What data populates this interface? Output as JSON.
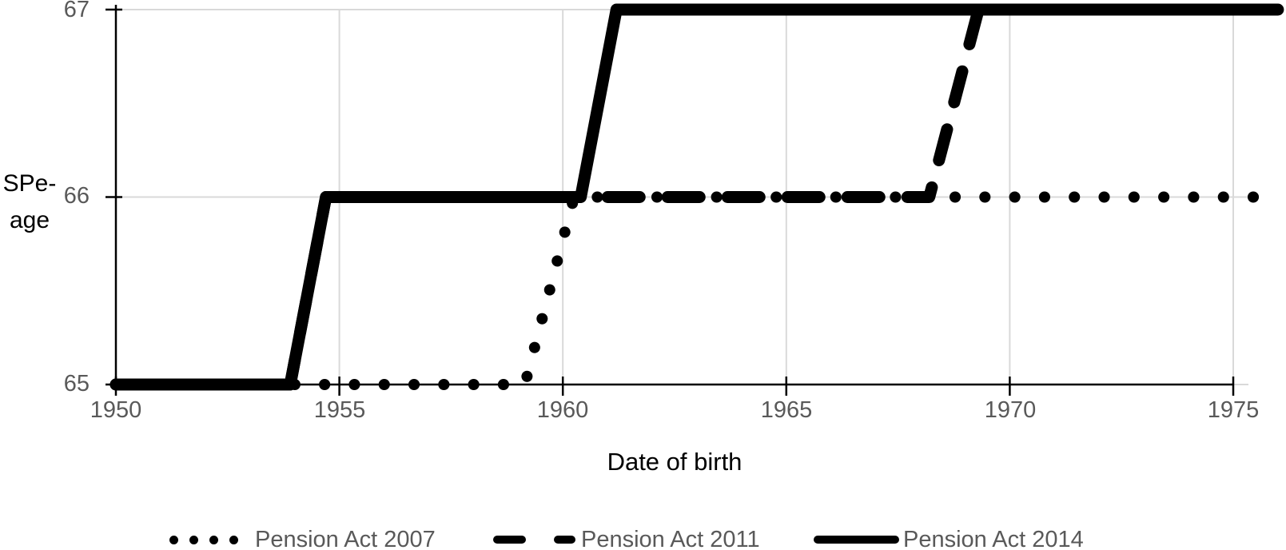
{
  "figure": {
    "y_axis": {
      "title_line1": "SPe-",
      "title_line2": "age",
      "ticks": [
        "67",
        "66",
        "65"
      ]
    },
    "x_axis": {
      "title": "Date of birth",
      "ticks": [
        "1950",
        "1955",
        "1960",
        "1965",
        "1970",
        "1975"
      ]
    },
    "legend": {
      "position": "bottom",
      "items": [
        {
          "label": "Pension Act 2007",
          "style": "dotted"
        },
        {
          "label": "Pension Act 2011",
          "style": "dashed"
        },
        {
          "label": "Pension Act 2014",
          "style": "solid"
        }
      ]
    }
  },
  "chart_data": {
    "type": "line",
    "title": "",
    "xlabel": "Date of birth",
    "ylabel": "SPe-age",
    "xlim": [
      1950,
      1976.1
    ],
    "ylim": [
      65,
      67
    ],
    "x_ticks": [
      1950,
      1955,
      1960,
      1965,
      1970,
      1975
    ],
    "y_ticks": [
      65,
      66,
      67
    ],
    "grid": true,
    "legend_position": "bottom",
    "series": [
      {
        "name": "Pension Act 2007",
        "style": "dotted",
        "points": [
          [
            1950,
            65
          ],
          [
            1959.15,
            65
          ],
          [
            1960.25,
            66
          ],
          [
            1975.7,
            66
          ]
        ]
      },
      {
        "name": "Pension Act 2011",
        "style": "dashed",
        "points": [
          [
            1950,
            65
          ],
          [
            1953.9,
            65
          ],
          [
            1954.7,
            66
          ],
          [
            1968.2,
            66
          ],
          [
            1969.3,
            67
          ],
          [
            1976,
            67
          ]
        ]
      },
      {
        "name": "Pension Act 2014",
        "style": "solid",
        "points": [
          [
            1950,
            65
          ],
          [
            1953.9,
            65
          ],
          [
            1954.7,
            66
          ],
          [
            1960.4,
            66
          ],
          [
            1961.2,
            67
          ],
          [
            1976,
            67
          ]
        ]
      }
    ],
    "colors": {
      "series": "#000000",
      "grid": "#d9d9d9",
      "axis": "#000000",
      "tick_labels": "#595959",
      "axis_titles": "#000000"
    }
  }
}
